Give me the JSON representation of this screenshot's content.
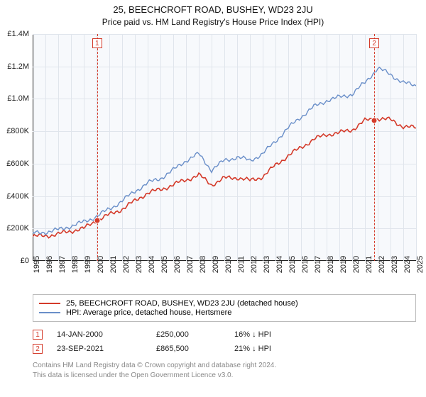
{
  "title": "25, BEECHCROFT ROAD, BUSHEY, WD23 2JU",
  "subtitle": "Price paid vs. HM Land Registry's House Price Index (HPI)",
  "chart": {
    "type": "line",
    "background_color": "#f7f9fc",
    "grid_color": "#e0e5ec",
    "axis_color": "#222222",
    "x_years": [
      1995,
      1996,
      1997,
      1998,
      1999,
      2000,
      2001,
      2002,
      2003,
      2004,
      2005,
      2006,
      2007,
      2008,
      2009,
      2010,
      2011,
      2012,
      2013,
      2014,
      2015,
      2016,
      2017,
      2018,
      2019,
      2020,
      2021,
      2022,
      2023,
      2024,
      2025
    ],
    "ylim": [
      0,
      1400000
    ],
    "y_ticks": [
      0,
      200000,
      400000,
      600000,
      800000,
      1000000,
      1200000,
      1400000
    ],
    "y_tick_labels": [
      "£0",
      "£200K",
      "£400K",
      "£600K",
      "£800K",
      "£1.0M",
      "£1.2M",
      "£1.4M"
    ],
    "label_fontsize": 11,
    "series": [
      {
        "name": "price_paid",
        "label": "25, BEECHCROFT ROAD, BUSHEY, WD23 2JU (detached house)",
        "color": "#d43a2a",
        "line_width": 1.6,
        "values": [
          150000,
          155000,
          165000,
          185000,
          200000,
          250000,
          285000,
          320000,
          370000,
          420000,
          440000,
          470000,
          500000,
          530000,
          470000,
          510000,
          515000,
          495000,
          520000,
          590000,
          650000,
          700000,
          750000,
          780000,
          790000,
          810000,
          865000,
          880000,
          870000,
          830000,
          820000
        ]
      },
      {
        "name": "hpi",
        "label": "HPI: Average price, detached house, Hertsmere",
        "color": "#6a8fc9",
        "line_width": 1.4,
        "values": [
          170000,
          178000,
          192000,
          215000,
          240000,
          275000,
          320000,
          370000,
          430000,
          480000,
          510000,
          560000,
          620000,
          660000,
          560000,
          620000,
          640000,
          620000,
          660000,
          740000,
          820000,
          890000,
          950000,
          990000,
          1010000,
          1030000,
          1100000,
          1190000,
          1150000,
          1100000,
          1080000
        ]
      }
    ],
    "sales": [
      {
        "idx": "1",
        "year_pos": 2000.04,
        "price": 250000,
        "date": "14-JAN-2000",
        "price_label": "£250,000",
        "hpi_label": "16% ↓ HPI"
      },
      {
        "idx": "2",
        "year_pos": 2021.73,
        "price": 865500,
        "date": "23-SEP-2021",
        "price_label": "£865,500",
        "hpi_label": "21% ↓ HPI"
      }
    ]
  },
  "license_line1": "Contains HM Land Registry data © Crown copyright and database right 2024.",
  "license_line2": "This data is licensed under the Open Government Licence v3.0."
}
